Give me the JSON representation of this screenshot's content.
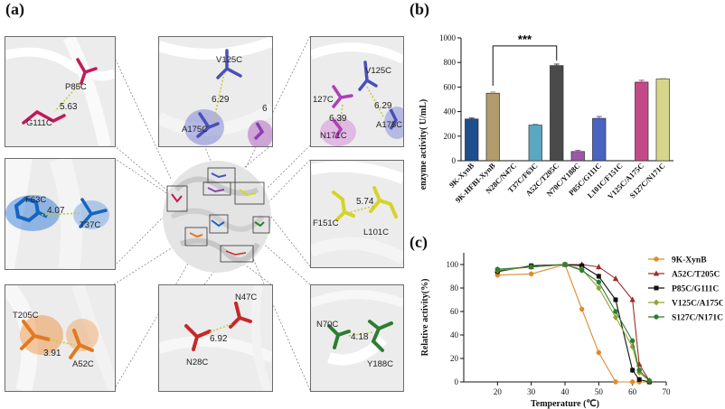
{
  "panels": {
    "a": "(a)",
    "b": "(b)",
    "c": "(c)"
  },
  "structure_boxes": [
    {
      "id": "p85c-g111c",
      "residues": [
        "P85C",
        "G111C"
      ],
      "distance": "5.63",
      "color": "#c2185b"
    },
    {
      "id": "v125c-a175c",
      "residues": [
        "V125C",
        "A175C"
      ],
      "distance": "6.29",
      "extra": "6",
      "color": "#4a50b8"
    },
    {
      "id": "triad",
      "residues": [
        "V125C",
        "127C",
        "A175C",
        "N171C"
      ],
      "distances": [
        "6.29",
        "6.39"
      ],
      "color": "#8a3fb0"
    },
    {
      "id": "f63c-t37c",
      "residues": [
        "F63C",
        "T37C"
      ],
      "distance": "4.07",
      "color": "#1565c0"
    },
    {
      "id": "f151c-l101c",
      "residues": [
        "F151C",
        "L101C"
      ],
      "distance": "5.74",
      "color": "#d4d42a"
    },
    {
      "id": "t205c-a52c",
      "residues": [
        "T205C",
        "A52C"
      ],
      "distance": "3.91",
      "color": "#e07a20"
    },
    {
      "id": "n47c-n28c",
      "residues": [
        "N47C",
        "N28C"
      ],
      "distance": "6.92",
      "color": "#c62828"
    },
    {
      "id": "n70c-y188c",
      "residues": [
        "N70C",
        "Y188C"
      ],
      "distance": "4.18",
      "color": "#2e7d32"
    }
  ],
  "chart_data": [
    {
      "type": "bar",
      "panel": "(b)",
      "categories": [
        "9K-XynB",
        "9K-HFBI-XynB",
        "N28C/N47C",
        "T37C/F63C",
        "A52C/T205C",
        "N70C/Y188C",
        "P85C/G111C",
        "L101C/F151C",
        "V125C/A175C",
        "S127C/N171C"
      ],
      "values": [
        340,
        550,
        0,
        290,
        775,
        75,
        345,
        0,
        640,
        665
      ],
      "errors": [
        8,
        10,
        0,
        8,
        12,
        10,
        15,
        0,
        15,
        8
      ],
      "colors": [
        "#1f4e8c",
        "#b39a6c",
        "#999999",
        "#5aa7c0",
        "#4a4a4a",
        "#9a59a6",
        "#4a63c0",
        "#999999",
        "#c44a87",
        "#d6d68a"
      ],
      "ylabel": "enzyme activity( U/mL)",
      "ylim": [
        0,
        1000
      ],
      "yticks": [
        0,
        200,
        400,
        600,
        800,
        1000
      ],
      "annotation": "***",
      "annotation_pair": [
        1,
        4
      ]
    },
    {
      "type": "line",
      "panel": "(c)",
      "xlabel": "Temperature (℃)",
      "ylabel": "Relative activity(%)",
      "xlim": [
        10,
        70
      ],
      "ylim": [
        0,
        110
      ],
      "xticks": [
        20,
        30,
        40,
        50,
        60,
        70
      ],
      "yticks": [
        0,
        20,
        40,
        60,
        80,
        100
      ],
      "legend_position": "top-right",
      "series": [
        {
          "name": "9K-XynB",
          "color": "#e08a2c",
          "marker": "circle",
          "x": [
            20,
            30,
            40,
            45,
            50,
            55,
            60,
            62,
            65
          ],
          "y": [
            91,
            92,
            100,
            62,
            25,
            0,
            0,
            0,
            0
          ]
        },
        {
          "name": "A52C/T205C",
          "color": "#9b2d2d",
          "marker": "triangle",
          "x": [
            20,
            30,
            40,
            45,
            50,
            55,
            60,
            62,
            65
          ],
          "y": [
            95,
            98,
            100,
            100,
            98,
            88,
            70,
            15,
            1
          ]
        },
        {
          "name": "P85C/G111C",
          "color": "#111111",
          "marker": "square",
          "x": [
            20,
            30,
            40,
            45,
            50,
            55,
            60,
            62,
            65
          ],
          "y": [
            94,
            99,
            100,
            99,
            90,
            70,
            10,
            2,
            0
          ]
        },
        {
          "name": "V125C/A175C",
          "color": "#8ea335",
          "marker": "diamond",
          "x": [
            20,
            30,
            40,
            45,
            50,
            55,
            60,
            62,
            65
          ],
          "y": [
            95,
            98,
            100,
            96,
            80,
            55,
            30,
            8,
            1
          ]
        },
        {
          "name": "S127C/N171C",
          "color": "#2e7d32",
          "marker": "circle",
          "x": [
            20,
            30,
            40,
            45,
            50,
            55,
            60,
            62,
            65
          ],
          "y": [
            96,
            98,
            100,
            95,
            85,
            60,
            35,
            10,
            1
          ]
        }
      ]
    }
  ]
}
